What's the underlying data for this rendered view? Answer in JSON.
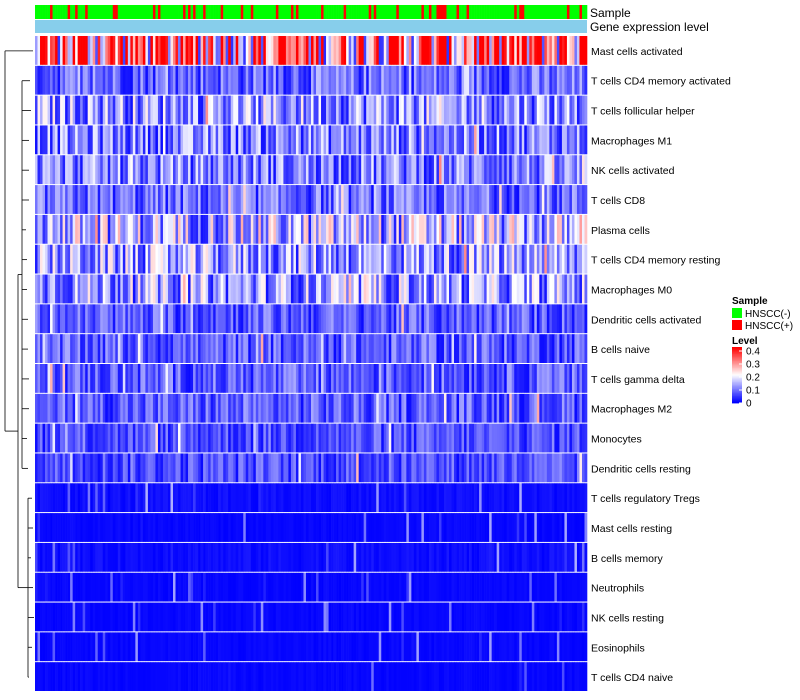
{
  "chart_data": {
    "type": "heatmap",
    "annotation_rows": [
      "Sample",
      "Gene expression level"
    ],
    "rows": [
      "Mast cells activated",
      "T cells CD4 memory activated",
      "T cells follicular helper",
      "Macrophages M1",
      "NK cells activated",
      "T cells CD8",
      "Plasma cells",
      "T cells CD4 memory resting",
      "Macrophages M0",
      "Dendritic cells activated",
      "B cells naive",
      "T cells gamma delta",
      "Macrophages M2",
      "Monocytes",
      "Dendritic cells resting",
      "T cells regulatory  Tregs",
      "Mast cells resting",
      "B cells memory",
      "Neutrophils",
      "NK cells resting",
      "Eosinophils",
      "T cells CD4 naive"
    ],
    "row_mean_levels": [
      0.3,
      0.08,
      0.12,
      0.1,
      0.1,
      0.08,
      0.14,
      0.12,
      0.12,
      0.07,
      0.07,
      0.07,
      0.07,
      0.06,
      0.06,
      0.02,
      0.01,
      0.02,
      0.01,
      0.01,
      0.01,
      0.01
    ],
    "n_samples": 220,
    "legend": {
      "sample_title": "Sample",
      "sample_entries": [
        {
          "label": "HNSCC(-)",
          "color": "#00ff00"
        },
        {
          "label": "HNSCC(+)",
          "color": "#ff0000"
        }
      ],
      "level_title": "Level",
      "level_ticks": [
        "0.4",
        "0.3",
        "0.2",
        "0.1",
        "0"
      ],
      "level_tick_values": [
        0.4,
        0.3,
        0.2,
        0.1,
        0
      ],
      "level_range": [
        0,
        0.4
      ]
    },
    "colors": {
      "low": "#0000ff",
      "mid": "#ffffff",
      "high": "#ff0000",
      "gene_expression_bar": "#87ceeb"
    }
  }
}
